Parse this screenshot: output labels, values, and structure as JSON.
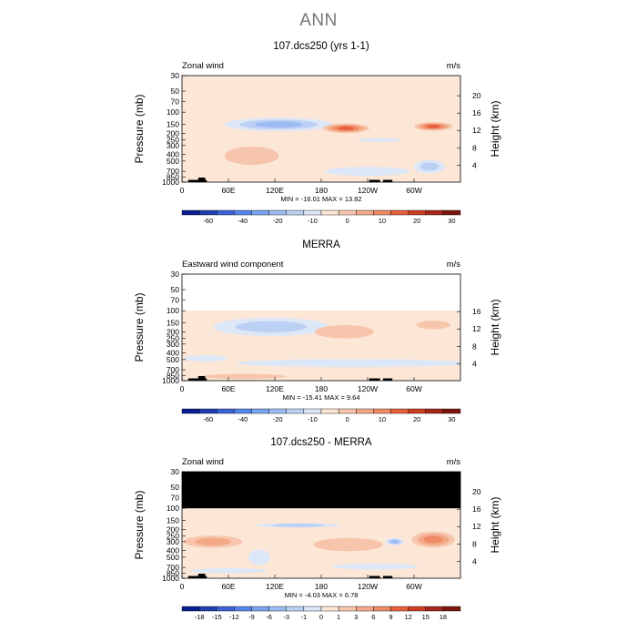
{
  "page_title": "ANN",
  "colors": {
    "c_m60": "#081d8f",
    "c_m50": "#1f3fb0",
    "c_m40": "#3b62d6",
    "c_m30": "#5585ea",
    "c_m20": "#7aa3f0",
    "c_m15": "#9cbbf2",
    "c_m10": "#bcd0f4",
    "c_m5": "#dce7f8",
    "c_p5": "#fce6d6",
    "c_p10": "#f7c5ac",
    "c_p15": "#f3a888",
    "c_p20": "#ee8a64",
    "c_p25": "#e6603c",
    "c_p30": "#cc3e22",
    "c_p40": "#a52717",
    "c_p50": "#7a160d",
    "blank": "#ffffff",
    "mask": "#000000"
  },
  "chart_data": [
    {
      "type": "contour",
      "panel_title": "107.dcs250 (yrs 1-1)",
      "left_label": "Zonal wind",
      "units": "m/s",
      "ylabel": "Pressure (mb)",
      "ylabel_right": "Height (km)",
      "yticks": [
        "30",
        "50",
        "70",
        "100",
        "150",
        "200",
        "250",
        "300",
        "400",
        "500",
        "700",
        "850",
        "1000"
      ],
      "height_ticks": [
        "20",
        "16",
        "12",
        "8",
        "4"
      ],
      "xticks": [
        "0",
        "60E",
        "120E",
        "180",
        "120W",
        "60W"
      ],
      "stats": "MIN = -16.01   MAX =  13.82",
      "min": -16.01,
      "max": 13.82,
      "colorbar_labels": [
        "-60",
        "-40",
        "-20",
        "-10",
        "0",
        "10",
        "20",
        "30"
      ],
      "colorbar_colors": [
        "c_m60",
        "c_m50",
        "c_m40",
        "c_m30",
        "c_m20",
        "c_m15",
        "c_m10",
        "c_m5",
        "c_p5",
        "c_p10",
        "c_p15",
        "c_p20",
        "c_p25",
        "c_p30",
        "c_p40",
        "c_p50"
      ],
      "background": "c_p5",
      "top_missing_hPa": 0,
      "blobs": [
        {
          "lon": 125,
          "p": 150,
          "dlon": 70,
          "dp": 0.22,
          "levels": [
            "c_m5",
            "c_m10",
            "c_m15"
          ]
        },
        {
          "lon": 90,
          "p": 420,
          "dlon": 35,
          "dp": 0.3,
          "levels": [
            "c_p10"
          ]
        },
        {
          "lon": 255,
          "p": 250,
          "dlon": 28,
          "dp": 0.05,
          "levels": [
            "c_m5"
          ]
        },
        {
          "lon": 240,
          "p": 700,
          "dlon": 55,
          "dp": 0.15,
          "levels": [
            "c_m5"
          ]
        },
        {
          "lon": 320,
          "p": 600,
          "dlon": 20,
          "dp": 0.22,
          "levels": [
            "c_m5",
            "c_m10"
          ]
        },
        {
          "lon": 212,
          "p": 170,
          "dlon": 30,
          "dp": 0.16,
          "levels": [
            "c_p10",
            "c_p15",
            "c_p20",
            "c_p25"
          ]
        },
        {
          "lon": 325,
          "p": 160,
          "dlon": 25,
          "dp": 0.14,
          "levels": [
            "c_p10",
            "c_p15",
            "c_p20",
            "c_p25"
          ]
        }
      ]
    },
    {
      "type": "contour",
      "panel_title": "MERRA",
      "left_label": "Eastward wind component",
      "units": "m/s",
      "ylabel": "Pressure (mb)",
      "ylabel_right": "Height (km)",
      "yticks": [
        "30",
        "50",
        "70",
        "100",
        "150",
        "200",
        "250",
        "300",
        "400",
        "500",
        "700",
        "850",
        "1000"
      ],
      "height_ticks": [
        "16",
        "12",
        "8",
        "4"
      ],
      "xticks": [
        "0",
        "60E",
        "120E",
        "180",
        "120W",
        "60W"
      ],
      "stats": "MIN = -15.41   MAX =   9.64",
      "min": -15.41,
      "max": 9.64,
      "colorbar_labels": [
        "-60",
        "-40",
        "-20",
        "-10",
        "0",
        "10",
        "20",
        "30"
      ],
      "colorbar_colors": [
        "c_m60",
        "c_m50",
        "c_m40",
        "c_m30",
        "c_m20",
        "c_m15",
        "c_m10",
        "c_m5",
        "c_p5",
        "c_p10",
        "c_p15",
        "c_p20",
        "c_p25",
        "c_p30",
        "c_p40",
        "c_p50"
      ],
      "background": "c_p5",
      "top_missing_hPa": 100,
      "missing_fill": "blank",
      "blobs": [
        {
          "lon": 115,
          "p": 170,
          "dlon": 75,
          "dp": 0.3,
          "levels": [
            "c_m5",
            "c_m10"
          ]
        },
        {
          "lon": 220,
          "p": 560,
          "dlon": 150,
          "dp": 0.13,
          "levels": [
            "c_m5"
          ]
        },
        {
          "lon": 30,
          "p": 480,
          "dlon": 28,
          "dp": 0.1,
          "levels": [
            "c_m5"
          ]
        },
        {
          "lon": 210,
          "p": 200,
          "dlon": 38,
          "dp": 0.22,
          "levels": [
            "c_p10"
          ]
        },
        {
          "lon": 325,
          "p": 160,
          "dlon": 22,
          "dp": 0.14,
          "levels": [
            "c_p10"
          ]
        },
        {
          "lon": 80,
          "p": 870,
          "dlon": 55,
          "dp": 0.08,
          "levels": [
            "c_p10"
          ]
        }
      ]
    },
    {
      "type": "contour",
      "panel_title": "107.dcs250 - MERRA",
      "left_label": "Zonal wind",
      "units": "m/s",
      "ylabel": "Pressure (mb)",
      "ylabel_right": "Height (km)",
      "yticks": [
        "30",
        "50",
        "70",
        "100",
        "150",
        "200",
        "250",
        "300",
        "400",
        "500",
        "700",
        "850",
        "1000"
      ],
      "height_ticks": [
        "20",
        "16",
        "12",
        "8",
        "4"
      ],
      "xticks": [
        "0",
        "60E",
        "120E",
        "180",
        "120W",
        "60W"
      ],
      "stats": "MIN = -4.03   MAX =  6.78",
      "min": -4.03,
      "max": 6.78,
      "colorbar_labels": [
        "-18",
        "-15",
        "-12",
        "-9",
        "-6",
        "-3",
        "-1",
        "0",
        "1",
        "3",
        "6",
        "9",
        "12",
        "15",
        "18"
      ],
      "colorbar_colors": [
        "c_m60",
        "c_m50",
        "c_m40",
        "c_m30",
        "c_m20",
        "c_m15",
        "c_m10",
        "c_m5",
        "c_p5",
        "c_p10",
        "c_p15",
        "c_p20",
        "c_p25",
        "c_p30",
        "c_p40",
        "c_p50"
      ],
      "background": "c_p5",
      "top_missing_hPa": 100,
      "missing_fill": "mask",
      "blobs": [
        {
          "lon": 40,
          "p": 300,
          "dlon": 38,
          "dp": 0.2,
          "levels": [
            "c_p10",
            "c_p15"
          ]
        },
        {
          "lon": 215,
          "p": 330,
          "dlon": 45,
          "dp": 0.22,
          "levels": [
            "c_p10"
          ]
        },
        {
          "lon": 325,
          "p": 280,
          "dlon": 28,
          "dp": 0.26,
          "levels": [
            "c_p10",
            "c_p15",
            "c_p20"
          ]
        },
        {
          "lon": 150,
          "p": 175,
          "dlon": 55,
          "dp": 0.07,
          "levels": [
            "c_m5",
            "c_m10"
          ]
        },
        {
          "lon": 100,
          "p": 500,
          "dlon": 14,
          "dp": 0.25,
          "levels": [
            "c_m5"
          ]
        },
        {
          "lon": 275,
          "p": 300,
          "dlon": 12,
          "dp": 0.12,
          "levels": [
            "c_m5",
            "c_m10",
            "c_m15"
          ]
        },
        {
          "lon": 250,
          "p": 680,
          "dlon": 55,
          "dp": 0.1,
          "levels": [
            "c_m5"
          ]
        },
        {
          "lon": 60,
          "p": 780,
          "dlon": 50,
          "dp": 0.08,
          "levels": [
            "c_m5"
          ]
        }
      ]
    }
  ]
}
